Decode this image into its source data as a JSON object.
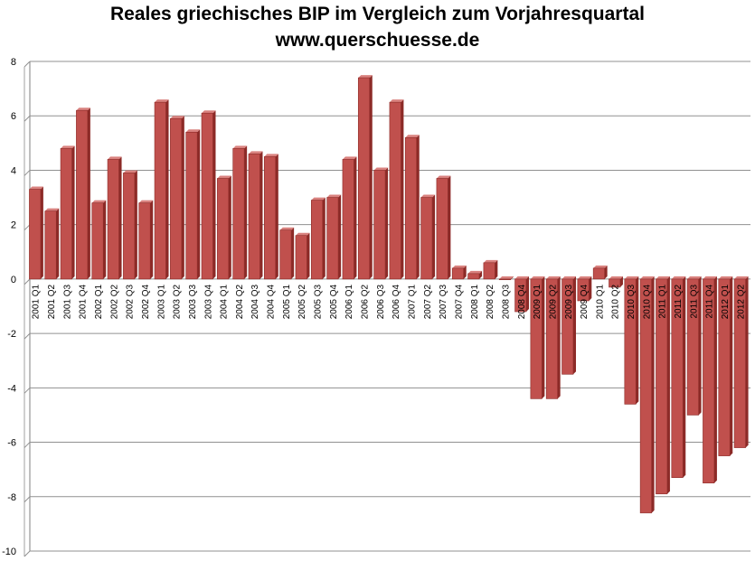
{
  "title": "Reales griechisches BIP im Vergleich zum Vorjahresquartal",
  "subtitle": "www.querschuesse.de",
  "chart_data": {
    "type": "bar",
    "title": "Reales griechisches BIP im Vergleich zum Vorjahresquartal",
    "subtitle": "www.querschuesse.de",
    "xlabel": "",
    "ylabel": "",
    "ylim": [
      -10,
      8
    ],
    "yticks": [
      8,
      6,
      4,
      2,
      0,
      -2,
      -4,
      -6,
      -8,
      -10
    ],
    "grid": true,
    "bar_color": "#c0504d",
    "categories": [
      "2001 Q1",
      "2001 Q2",
      "2001 Q3",
      "2001 Q4",
      "2002 Q1",
      "2002 Q2",
      "2002 Q3",
      "2002 Q4",
      "2003 Q1",
      "2003 Q2",
      "2003 Q3",
      "2003 Q4",
      "2004 Q1",
      "2004 Q2",
      "2004 Q3",
      "2004 Q4",
      "2005 Q1",
      "2005 Q2",
      "2005 Q3",
      "2005 Q4",
      "2006 Q1",
      "2006 Q2",
      "2006 Q3",
      "2006 Q4",
      "2007 Q1",
      "2007 Q2",
      "2007 Q3",
      "2007 Q4",
      "2008 Q1",
      "2008 Q2",
      "2008 Q3",
      "2008 Q4",
      "2009 Q1",
      "2009 Q2",
      "2009 Q3",
      "2009 Q4",
      "2010 Q1",
      "2010 Q2",
      "2010 Q3",
      "2010 Q4",
      "2011 Q1",
      "2011 Q2",
      "2011 Q3",
      "2011 Q4",
      "2012 Q1",
      "2012 Q2"
    ],
    "values": [
      3.3,
      2.5,
      4.8,
      6.2,
      2.8,
      4.4,
      3.9,
      2.8,
      6.5,
      5.9,
      5.4,
      6.1,
      3.7,
      4.8,
      4.6,
      4.5,
      1.8,
      1.6,
      2.9,
      3.0,
      4.4,
      7.4,
      4.0,
      6.5,
      5.2,
      3.0,
      3.7,
      0.4,
      0.2,
      0.6,
      0.0,
      -1.2,
      -4.4,
      -4.4,
      -3.5,
      -0.8,
      0.4,
      -0.3,
      -4.6,
      -8.6,
      -7.9,
      -7.3,
      -5.0,
      -7.5,
      -6.5,
      -6.2
    ]
  }
}
